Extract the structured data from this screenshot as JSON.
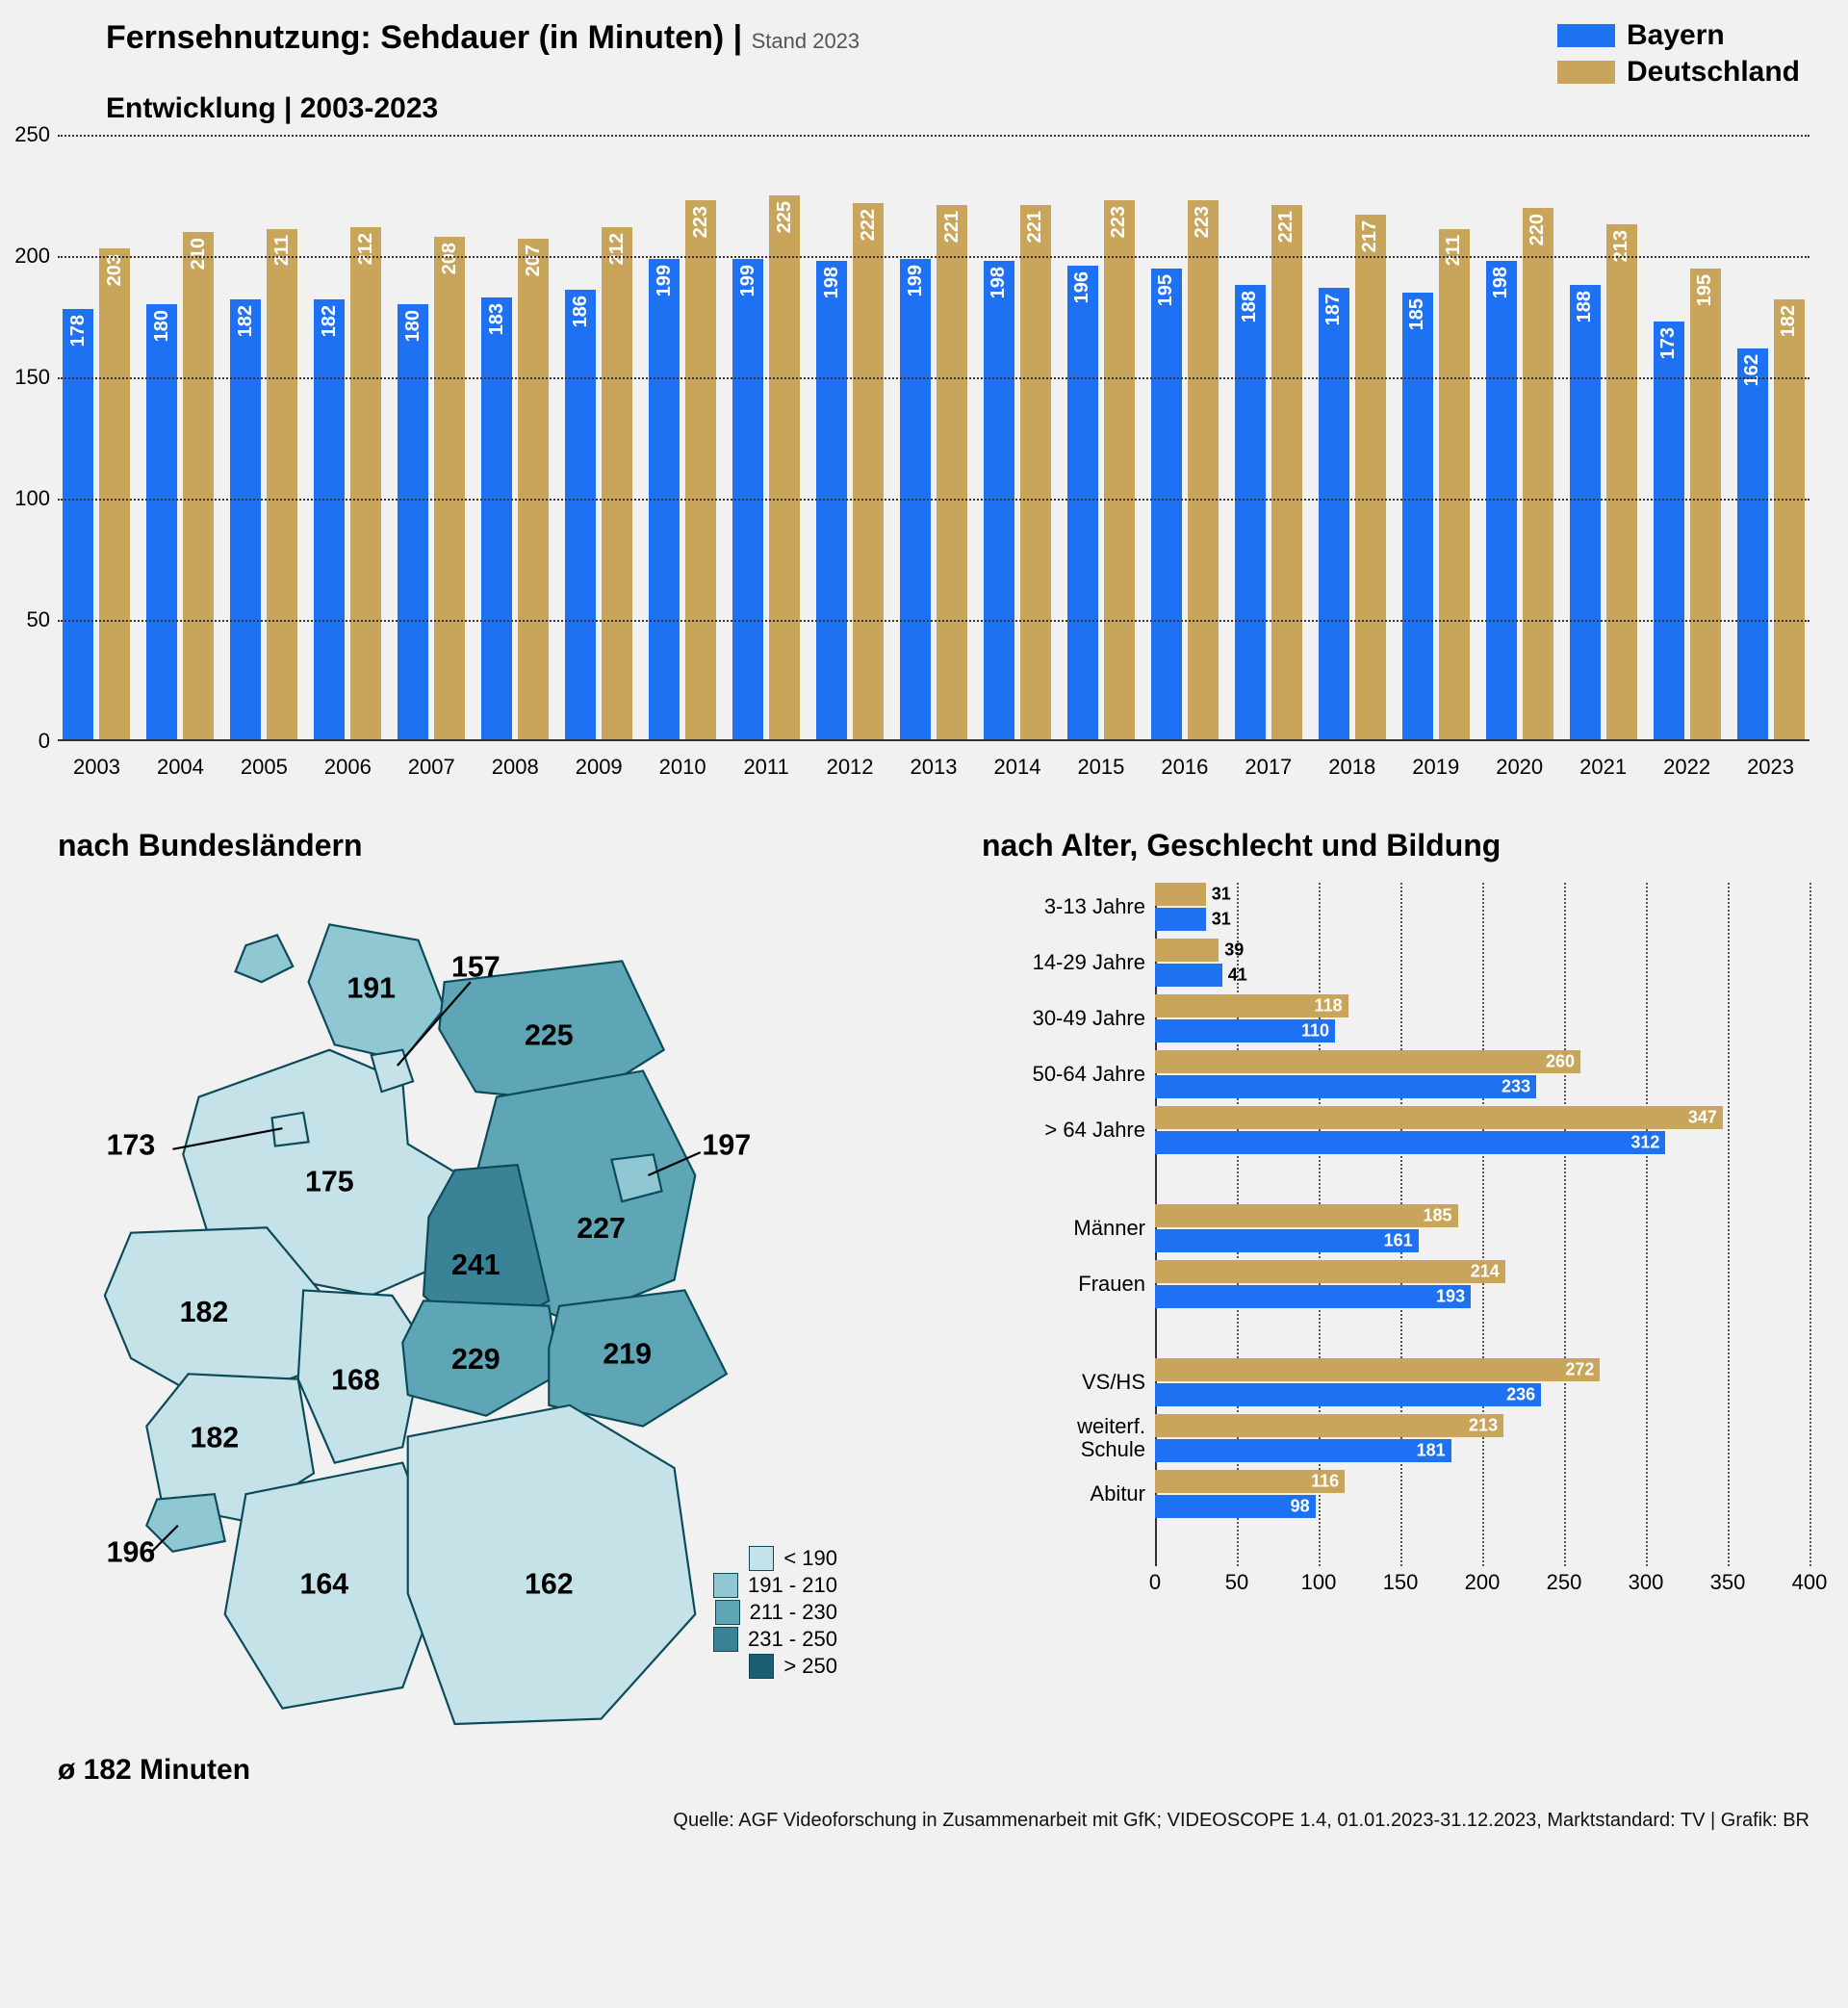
{
  "colors": {
    "bayern": "#1d71f2",
    "deutschland": "#c8a55a",
    "background": "#f1f1f2",
    "text": "#000000",
    "grid": "#333333"
  },
  "title_line1_a": "Fernsehnutzung: Sehdauer (in Minuten)",
  "title_line1_sep": " | ",
  "title_line1_b": "Stand 2023",
  "title_line2": "Entwicklung | 2003-2023",
  "legend": {
    "bayern": "Bayern",
    "deutschland": "Deutschland"
  },
  "top_chart": {
    "type": "grouped-bar",
    "ylim": [
      0,
      250
    ],
    "ytick_step": 50,
    "vertical_value_label_color": "#ffffff",
    "years": [
      "2003",
      "2004",
      "2005",
      "2006",
      "2007",
      "2008",
      "2009",
      "2010",
      "2011",
      "2012",
      "2013",
      "2014",
      "2015",
      "2016",
      "2017",
      "2018",
      "2019",
      "2020",
      "2021",
      "2022",
      "2023"
    ],
    "bayern": [
      178,
      180,
      182,
      182,
      180,
      183,
      186,
      199,
      199,
      198,
      199,
      198,
      196,
      195,
      188,
      187,
      185,
      198,
      188,
      173,
      162
    ],
    "deutschland": [
      203,
      210,
      211,
      212,
      208,
      207,
      212,
      223,
      225,
      222,
      221,
      221,
      223,
      223,
      221,
      217,
      211,
      220,
      213,
      195,
      182
    ]
  },
  "map": {
    "title": "nach Bundesländern",
    "avg_label": "ø 182 Minuten",
    "legend_bins": [
      {
        "label": "< 190",
        "color": "#c4e2e7"
      },
      {
        "label": "191 - 210",
        "color": "#8fc7d2"
      },
      {
        "label": "211 - 230",
        "color": "#5ea6b5"
      },
      {
        "label": "231 - 250",
        "color": "#3a8396"
      },
      {
        "label": "> 250",
        "color": "#1b5d72"
      }
    ],
    "states": [
      {
        "name": "Schleswig-Holstein",
        "value": 191,
        "color": "#8fc7d2"
      },
      {
        "name": "Hamburg",
        "value": 157,
        "color": "#c4e2e7"
      },
      {
        "name": "Mecklenburg-Vorpommern",
        "value": 225,
        "color": "#5ea6b5"
      },
      {
        "name": "Bremen",
        "value": 173,
        "color": "#c4e2e7"
      },
      {
        "name": "Niedersachsen",
        "value": 175,
        "color": "#c4e2e7"
      },
      {
        "name": "Berlin",
        "value": 197,
        "color": "#8fc7d2"
      },
      {
        "name": "Brandenburg",
        "value": 227,
        "color": "#5ea6b5"
      },
      {
        "name": "Sachsen-Anhalt",
        "value": 241,
        "color": "#3a8396"
      },
      {
        "name": "Nordrhein-Westfalen",
        "value": 182,
        "color": "#c4e2e7"
      },
      {
        "name": "Hessen",
        "value": 168,
        "color": "#c4e2e7"
      },
      {
        "name": "Thüringen",
        "value": 229,
        "color": "#5ea6b5"
      },
      {
        "name": "Sachsen",
        "value": 219,
        "color": "#5ea6b5"
      },
      {
        "name": "Rheinland-Pfalz",
        "value": 182,
        "color": "#c4e2e7"
      },
      {
        "name": "Saarland",
        "value": 196,
        "color": "#8fc7d2"
      },
      {
        "name": "Baden-Württemberg",
        "value": 164,
        "color": "#c4e2e7"
      },
      {
        "name": "Bayern",
        "value": 162,
        "color": "#c4e2e7"
      }
    ]
  },
  "demo": {
    "title": "nach Alter, Geschlecht und Bildung",
    "xlim": [
      0,
      400
    ],
    "xtick_step": 50,
    "value_inside_threshold": 60,
    "groups": [
      {
        "block": "alter",
        "items": [
          {
            "label": "3-13 Jahre",
            "bayern": 31,
            "deutschland": 31
          },
          {
            "label": "14-29 Jahre",
            "bayern": 41,
            "deutschland": 39
          },
          {
            "label": "30-49 Jahre",
            "bayern": 110,
            "deutschland": 118
          },
          {
            "label": "50-64 Jahre",
            "bayern": 233,
            "deutschland": 260
          },
          {
            "label": "> 64 Jahre",
            "bayern": 312,
            "deutschland": 347
          }
        ]
      },
      {
        "block": "geschlecht",
        "items": [
          {
            "label": "Männer",
            "bayern": 161,
            "deutschland": 185
          },
          {
            "label": "Frauen",
            "bayern": 193,
            "deutschland": 214
          }
        ]
      },
      {
        "block": "bildung",
        "items": [
          {
            "label": "VS/HS",
            "bayern": 236,
            "deutschland": 272
          },
          {
            "label": "weiterf.\nSchule",
            "bayern": 181,
            "deutschland": 213
          },
          {
            "label": "Abitur",
            "bayern": 98,
            "deutschland": 116
          }
        ]
      }
    ]
  },
  "source_text": "Quelle: AGF Videoforschung in Zusammenarbeit mit GfK; VIDEOSCOPE 1.4, 01.01.2023-31.12.2023, Marktstandard: TV | Grafik: BR"
}
